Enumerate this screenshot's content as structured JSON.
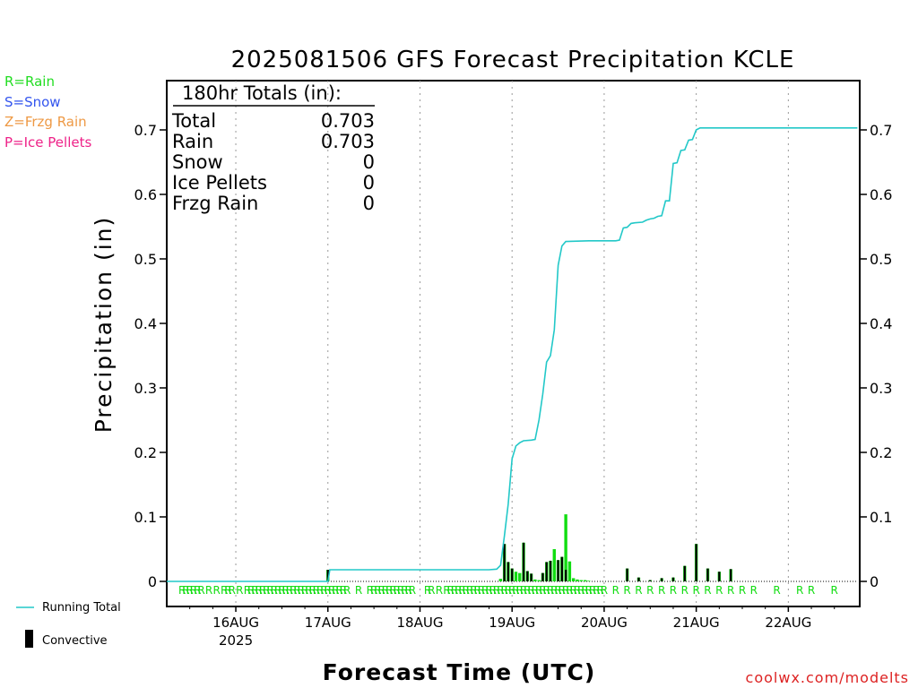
{
  "title": "2025081506 GFS Forecast Precipitation KCLE",
  "legend_ptype": [
    {
      "text": "R=Rain",
      "color": "#22dd22"
    },
    {
      "text": "S=Snow",
      "color": "#3355ee"
    },
    {
      "text": "Z=Frzg Rain",
      "color": "#ee9944"
    },
    {
      "text": "P=Ice Pellets",
      "color": "#ee2288"
    }
  ],
  "totals": {
    "header": "180hr Totals (in):",
    "rows": [
      {
        "label": "Total",
        "value": "0.703"
      },
      {
        "label": "Rain",
        "value": "0.703"
      },
      {
        "label": "Snow",
        "value": "0"
      },
      {
        "label": "Ice Pellets",
        "value": "0"
      },
      {
        "label": "Frzg Rain",
        "value": "0"
      }
    ]
  },
  "legend_series": {
    "running": "Running Total",
    "convective": "Convective"
  },
  "credit": "coolwx.com/modelts",
  "colors": {
    "running": "#22c8c8",
    "rain": "#11dd11",
    "convective": "#000000",
    "credit": "#dd2222"
  },
  "chart_data": {
    "type": "bar",
    "title": "2025081506 GFS Forecast Precipitation KCLE",
    "xlabel": "Forecast Time (UTC)",
    "ylabel": "Precipitation (in)",
    "ylim": [
      0,
      0.75
    ],
    "yticks": [
      "0",
      "0.1",
      "0.2",
      "0.3",
      "0.4",
      "0.5",
      "0.6",
      "0.7"
    ],
    "xlim_hours": [
      0,
      180
    ],
    "xticks": [
      {
        "label": "16AUG",
        "sub": "2025",
        "hour": 18
      },
      {
        "label": "17AUG",
        "hour": 42
      },
      {
        "label": "18AUG",
        "hour": 66
      },
      {
        "label": "19AUG",
        "hour": 90
      },
      {
        "label": "20AUG",
        "hour": 114
      },
      {
        "label": "21AUG",
        "hour": 138
      },
      {
        "label": "22AUG",
        "hour": 162
      }
    ],
    "grid": true,
    "series": [
      {
        "name": "Running Total",
        "type": "line",
        "points": [
          [
            0,
            0
          ],
          [
            42,
            0
          ],
          [
            42.5,
            0.018
          ],
          [
            84,
            0.018
          ],
          [
            86,
            0.019
          ],
          [
            87,
            0.025
          ],
          [
            88,
            0.07
          ],
          [
            89,
            0.12
          ],
          [
            90,
            0.19
          ],
          [
            91,
            0.21
          ],
          [
            92,
            0.215
          ],
          [
            93,
            0.218
          ],
          [
            95,
            0.219
          ],
          [
            96,
            0.22
          ],
          [
            97,
            0.25
          ],
          [
            98,
            0.29
          ],
          [
            99,
            0.34
          ],
          [
            100,
            0.35
          ],
          [
            101,
            0.39
          ],
          [
            102,
            0.49
          ],
          [
            103,
            0.52
          ],
          [
            104,
            0.527
          ],
          [
            110,
            0.528
          ],
          [
            117,
            0.528
          ],
          [
            118,
            0.529
          ],
          [
            119,
            0.548
          ],
          [
            120,
            0.549
          ],
          [
            121,
            0.555
          ],
          [
            122,
            0.556
          ],
          [
            124,
            0.557
          ],
          [
            125,
            0.56
          ],
          [
            126,
            0.562
          ],
          [
            127,
            0.563
          ],
          [
            128,
            0.566
          ],
          [
            129,
            0.567
          ],
          [
            130,
            0.59
          ],
          [
            131,
            0.59
          ],
          [
            132,
            0.648
          ],
          [
            133,
            0.649
          ],
          [
            134,
            0.668
          ],
          [
            135,
            0.669
          ],
          [
            136,
            0.684
          ],
          [
            137,
            0.685
          ],
          [
            138,
            0.7
          ],
          [
            139,
            0.703
          ],
          [
            180,
            0.703
          ]
        ]
      },
      {
        "name": "Rain",
        "type": "bar",
        "points": [
          [
            42,
            0.018
          ],
          [
            87,
            0.004
          ],
          [
            88,
            0.058
          ],
          [
            89,
            0.03
          ],
          [
            90,
            0.02
          ],
          [
            91,
            0.015
          ],
          [
            92,
            0.013
          ],
          [
            93,
            0.06
          ],
          [
            94,
            0.016
          ],
          [
            95,
            0.012
          ],
          [
            96,
            0.003
          ],
          [
            97,
            0.002
          ],
          [
            98,
            0.013
          ],
          [
            99,
            0.03
          ],
          [
            100,
            0.032
          ],
          [
            101,
            0.05
          ],
          [
            102,
            0.033
          ],
          [
            103,
            0.038
          ],
          [
            104,
            0.104
          ],
          [
            105,
            0.031
          ],
          [
            106,
            0.005
          ],
          [
            107,
            0.003
          ],
          [
            108,
            0.002
          ],
          [
            109,
            0.002
          ],
          [
            110,
            0.001
          ],
          [
            120,
            0.02
          ],
          [
            123,
            0.006
          ],
          [
            126,
            0.002
          ],
          [
            129,
            0.005
          ],
          [
            132,
            0.006
          ],
          [
            135,
            0.024
          ],
          [
            138,
            0.058
          ],
          [
            141,
            0.02
          ],
          [
            144,
            0.015
          ],
          [
            147,
            0.019
          ]
        ]
      },
      {
        "name": "Convective",
        "type": "bar",
        "points": [
          [
            42,
            0.018
          ],
          [
            88,
            0.058
          ],
          [
            89,
            0.03
          ],
          [
            90,
            0.02
          ],
          [
            93,
            0.06
          ],
          [
            94,
            0.016
          ],
          [
            95,
            0.012
          ],
          [
            98,
            0.013
          ],
          [
            99,
            0.03
          ],
          [
            100,
            0.032
          ],
          [
            102,
            0.033
          ],
          [
            103,
            0.038
          ],
          [
            104,
            0.018
          ],
          [
            120,
            0.02
          ],
          [
            123,
            0.006
          ],
          [
            126,
            0.002
          ],
          [
            129,
            0.005
          ],
          [
            132,
            0.006
          ],
          [
            135,
            0.024
          ],
          [
            138,
            0.058
          ],
          [
            141,
            0.02
          ],
          [
            144,
            0.015
          ],
          [
            147,
            0.019
          ]
        ]
      }
    ],
    "ptype_marks": {
      "symbol": "R",
      "hours": [
        4,
        5,
        6,
        7,
        8,
        9,
        11,
        13,
        15,
        16,
        17,
        19,
        21,
        22,
        23,
        24,
        25,
        26,
        27,
        28,
        29,
        30,
        31,
        32,
        33,
        34,
        35,
        36,
        37,
        38,
        39,
        40,
        41,
        42,
        43,
        44,
        45,
        46,
        47,
        50,
        53,
        54,
        55,
        56,
        57,
        58,
        59,
        60,
        61,
        62,
        63,
        64,
        68,
        69,
        71,
        73,
        74,
        75,
        76,
        77,
        78,
        79,
        80,
        81,
        82,
        83,
        84,
        85,
        86,
        87,
        88,
        89,
        90,
        91,
        92,
        93,
        94,
        95,
        96,
        97,
        98,
        99,
        100,
        101,
        102,
        103,
        104,
        105,
        106,
        107,
        108,
        109,
        110,
        111,
        112,
        113,
        114,
        117,
        120,
        123,
        126,
        129,
        132,
        135,
        138,
        141,
        144,
        147,
        150,
        153,
        159,
        165,
        168,
        174
      ]
    }
  }
}
